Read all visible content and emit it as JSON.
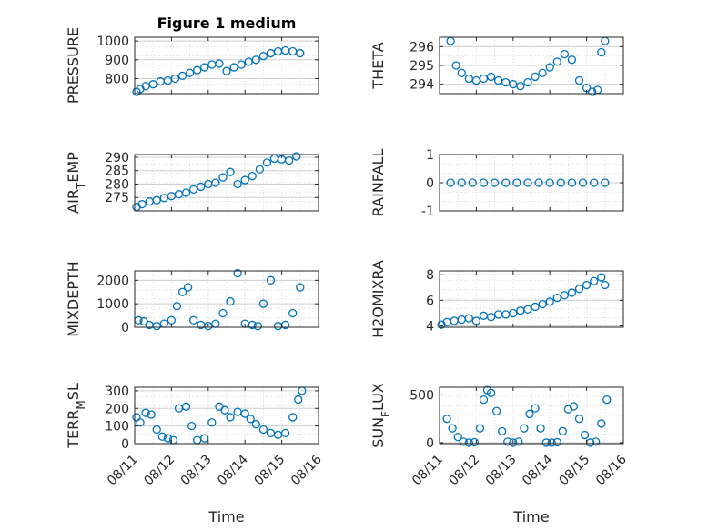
{
  "figure": {
    "title": "Figure 1 medium"
  },
  "style": {
    "marker_color": "#0072bd",
    "axis_color": "#262626",
    "grid_color": "#dcdcdc"
  },
  "chart_data": [
    {
      "type": "scatter",
      "title": "Figure 1 medium",
      "ylabel": "PRESSURE",
      "xlabel": "",
      "xlim": [
        0,
        5
      ],
      "ylim": [
        720,
        1020
      ],
      "yticks": [
        800,
        900,
        1000
      ],
      "x": [
        0.05,
        0.15,
        0.3,
        0.5,
        0.7,
        0.9,
        1.1,
        1.3,
        1.5,
        1.7,
        1.9,
        2.1,
        2.3,
        2.5,
        2.7,
        2.9,
        3.1,
        3.3,
        3.5,
        3.7,
        3.9,
        4.1,
        4.3,
        4.5
      ],
      "y": [
        730,
        745,
        760,
        770,
        785,
        790,
        800,
        815,
        830,
        845,
        860,
        875,
        880,
        840,
        860,
        875,
        890,
        900,
        920,
        935,
        945,
        950,
        945,
        935
      ]
    },
    {
      "type": "scatter",
      "title": "",
      "ylabel": "THETA",
      "xlabel": "",
      "xlim": [
        0,
        5
      ],
      "ylim": [
        293.5,
        296.5
      ],
      "yticks": [
        294,
        295,
        296
      ],
      "x": [
        0.3,
        0.45,
        0.6,
        0.8,
        1.0,
        1.2,
        1.4,
        1.6,
        1.8,
        2.0,
        2.2,
        2.4,
        2.6,
        2.8,
        3.0,
        3.2,
        3.4,
        3.6,
        3.8,
        4.0,
        4.15,
        4.3,
        4.4,
        4.5
      ],
      "y": [
        296.3,
        295.0,
        294.6,
        294.3,
        294.2,
        294.3,
        294.4,
        294.2,
        294.1,
        294.0,
        293.9,
        294.1,
        294.4,
        294.6,
        294.9,
        295.2,
        295.6,
        295.3,
        294.2,
        293.8,
        293.6,
        293.7,
        295.7,
        296.3
      ]
    },
    {
      "type": "scatter",
      "title": "",
      "ylabel": "AIR_TEMP",
      "xlabel": "",
      "xlim": [
        0,
        5
      ],
      "ylim": [
        270,
        291
      ],
      "yticks": [
        275,
        280,
        285,
        290
      ],
      "x": [
        0.05,
        0.2,
        0.4,
        0.6,
        0.8,
        1.0,
        1.2,
        1.4,
        1.6,
        1.8,
        2.0,
        2.2,
        2.4,
        2.6,
        2.8,
        3.0,
        3.2,
        3.4,
        3.6,
        3.8,
        4.0,
        4.2,
        4.4
      ],
      "y": [
        271.5,
        272.5,
        273.5,
        274.0,
        274.8,
        275.5,
        276.2,
        276.8,
        278.0,
        279.0,
        280.0,
        280.5,
        282.5,
        284.5,
        280.0,
        281.5,
        283.0,
        285.5,
        288.0,
        289.5,
        289.2,
        288.8,
        290.3
      ]
    },
    {
      "type": "scatter",
      "title": "",
      "ylabel": "RAINFALL",
      "xlabel": "",
      "xlim": [
        0,
        5
      ],
      "ylim": [
        -1,
        1
      ],
      "yticks": [
        -1,
        0,
        1
      ],
      "x": [
        0.3,
        0.6,
        0.9,
        1.2,
        1.5,
        1.8,
        2.1,
        2.4,
        2.7,
        3.0,
        3.3,
        3.6,
        3.9,
        4.2,
        4.5
      ],
      "y": [
        0,
        0,
        0,
        0,
        0,
        0,
        0,
        0,
        0,
        0,
        0,
        0,
        0,
        0,
        0
      ]
    },
    {
      "type": "scatter",
      "title": "",
      "ylabel": "MIXDEPTH",
      "xlabel": "",
      "xlim": [
        0,
        5
      ],
      "ylim": [
        0,
        2400
      ],
      "yticks": [
        0,
        1000,
        2000
      ],
      "x": [
        0.1,
        0.25,
        0.4,
        0.6,
        0.8,
        1.0,
        1.15,
        1.3,
        1.45,
        1.6,
        1.8,
        2.0,
        2.2,
        2.4,
        2.6,
        2.8,
        3.0,
        3.2,
        3.35,
        3.5,
        3.7,
        3.9,
        4.1,
        4.3,
        4.5
      ],
      "y": [
        300,
        250,
        100,
        50,
        150,
        300,
        900,
        1500,
        1700,
        300,
        100,
        50,
        150,
        600,
        1100,
        2300,
        150,
        100,
        50,
        1000,
        2000,
        50,
        100,
        600,
        1700
      ]
    },
    {
      "type": "scatter",
      "title": "",
      "ylabel": "H2OMIXRA",
      "xlabel": "",
      "xlim": [
        0,
        5
      ],
      "ylim": [
        3.9,
        8.3
      ],
      "yticks": [
        4,
        6,
        8
      ],
      "x": [
        0.05,
        0.2,
        0.4,
        0.6,
        0.8,
        1.0,
        1.2,
        1.4,
        1.6,
        1.8,
        2.0,
        2.2,
        2.4,
        2.6,
        2.8,
        3.0,
        3.2,
        3.4,
        3.6,
        3.8,
        4.0,
        4.2,
        4.4,
        4.5
      ],
      "y": [
        4.1,
        4.3,
        4.4,
        4.5,
        4.6,
        4.4,
        4.8,
        4.7,
        4.9,
        4.9,
        5.0,
        5.2,
        5.3,
        5.5,
        5.7,
        5.9,
        6.2,
        6.4,
        6.6,
        6.9,
        7.2,
        7.5,
        7.8,
        7.2
      ]
    },
    {
      "type": "scatter",
      "title": "",
      "ylabel": "TERR_MSL",
      "xlabel": "Time",
      "xlim": [
        0,
        5
      ],
      "ylim": [
        0,
        320
      ],
      "yticks": [
        0,
        100,
        200,
        300
      ],
      "xticks": [
        0,
        1,
        2,
        3,
        4,
        5
      ],
      "xticklabels": [
        "08/11",
        "08/12",
        "08/13",
        "08/14",
        "08/15",
        "08/16"
      ],
      "x": [
        0.05,
        0.15,
        0.3,
        0.45,
        0.6,
        0.75,
        0.9,
        1.05,
        1.2,
        1.4,
        1.55,
        1.7,
        1.9,
        2.1,
        2.3,
        2.45,
        2.6,
        2.8,
        3.0,
        3.15,
        3.3,
        3.5,
        3.7,
        3.9,
        4.1,
        4.3,
        4.45,
        4.55
      ],
      "y": [
        150,
        120,
        175,
        165,
        80,
        40,
        30,
        20,
        200,
        210,
        100,
        20,
        30,
        120,
        210,
        190,
        150,
        180,
        170,
        140,
        110,
        80,
        60,
        50,
        60,
        150,
        250,
        300
      ]
    },
    {
      "type": "scatter",
      "title": "",
      "ylabel": "SUN_FLUX",
      "xlabel": "Time",
      "xlim": [
        0,
        5
      ],
      "ylim": [
        -10,
        580
      ],
      "yticks": [
        0,
        500
      ],
      "xticks": [
        0,
        1,
        2,
        3,
        4,
        5
      ],
      "xticklabels": [
        "08/11",
        "08/12",
        "08/13",
        "08/14",
        "08/15",
        "08/16"
      ],
      "x": [
        0.2,
        0.35,
        0.5,
        0.65,
        0.8,
        0.95,
        1.1,
        1.2,
        1.3,
        1.4,
        1.55,
        1.7,
        1.85,
        2.0,
        2.15,
        2.3,
        2.45,
        2.6,
        2.75,
        2.9,
        3.05,
        3.2,
        3.35,
        3.5,
        3.65,
        3.8,
        3.95,
        4.1,
        4.25,
        4.4,
        4.55
      ],
      "y": [
        250,
        150,
        60,
        10,
        0,
        5,
        150,
        450,
        550,
        520,
        330,
        120,
        10,
        0,
        10,
        150,
        300,
        360,
        150,
        0,
        0,
        5,
        120,
        350,
        380,
        250,
        80,
        0,
        10,
        200,
        450
      ]
    }
  ]
}
